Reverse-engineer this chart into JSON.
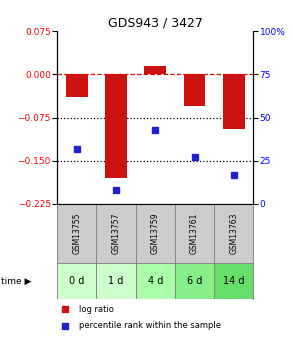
{
  "title": "GDS943 / 3427",
  "samples": [
    "GSM13755",
    "GSM13757",
    "GSM13759",
    "GSM13761",
    "GSM13763"
  ],
  "time_labels": [
    "0 d",
    "1 d",
    "4 d",
    "6 d",
    "14 d"
  ],
  "log_ratios": [
    -0.04,
    -0.18,
    0.015,
    -0.055,
    -0.095
  ],
  "percentile_ranks": [
    32,
    8,
    43,
    27,
    17
  ],
  "ylim_left": [
    -0.225,
    0.075
  ],
  "ylim_right": [
    0,
    100
  ],
  "yticks_left": [
    0.075,
    0,
    -0.075,
    -0.15,
    -0.225
  ],
  "yticks_right": [
    100,
    75,
    50,
    25,
    0
  ],
  "bar_color": "#cc1111",
  "dot_color": "#2222cc",
  "bar_width": 0.55,
  "dotted_lines": [
    -0.075,
    -0.15
  ],
  "dashed_line_y": 0,
  "bg_color": "#ffffff",
  "gsm_bg": "#cccccc",
  "time_bg_colors": [
    "#ccffcc",
    "#ccffcc",
    "#aaffaa",
    "#88ee88",
    "#66dd66"
  ],
  "legend_red": "log ratio",
  "legend_blue": "percentile rank within the sample",
  "title_fontsize": 9,
  "tick_fontsize": 6.5,
  "gsm_fontsize": 5.5,
  "time_fontsize": 7
}
